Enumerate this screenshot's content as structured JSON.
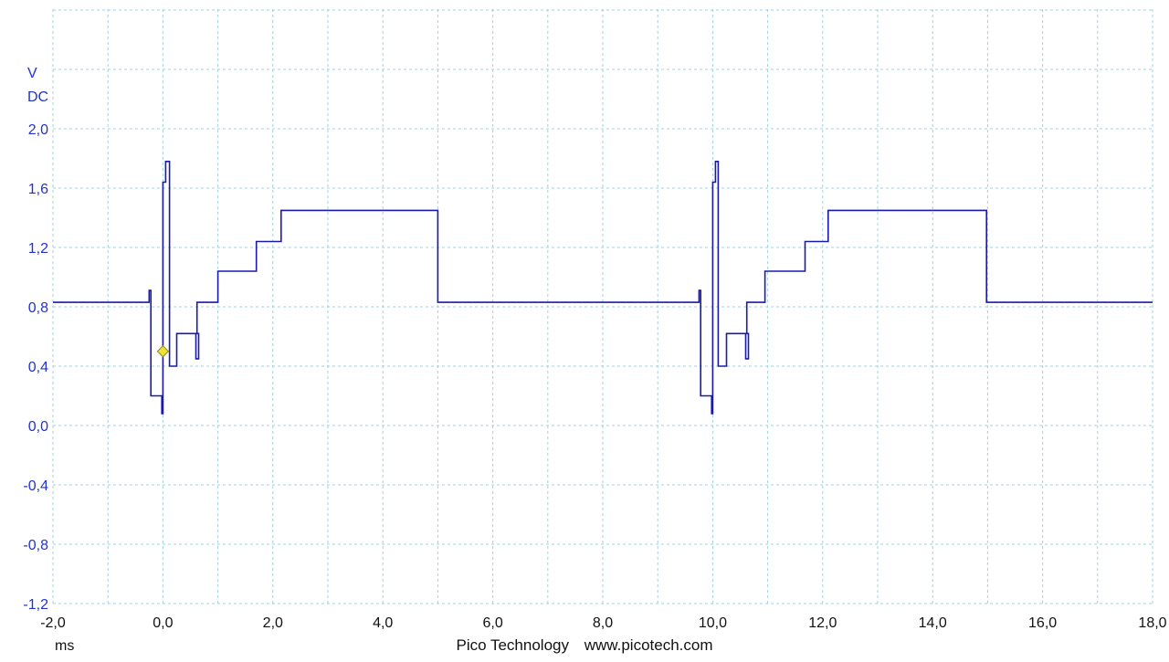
{
  "chart_data": {
    "type": "line",
    "y_unit": "V",
    "y_coupling": "DC",
    "x_unit": "ms",
    "xlim": [
      -2.0,
      18.0
    ],
    "ylim": [
      -1.2,
      2.0
    ],
    "x_ticks": [
      "-2,0",
      "0,0",
      "2,0",
      "4,0",
      "6,0",
      "8,0",
      "10,0",
      "12,0",
      "14,0",
      "16,0",
      "18,0"
    ],
    "y_ticks": [
      "2,0",
      "1,6",
      "1,2",
      "0,8",
      "0,4",
      "0,0",
      "-0,4",
      "-0,8",
      "-1,2"
    ],
    "x_tick_values": [
      -2,
      0,
      2,
      4,
      6,
      8,
      10,
      12,
      14,
      16,
      18
    ],
    "y_tick_values": [
      2.0,
      1.6,
      1.2,
      0.8,
      0.4,
      0.0,
      -0.4,
      -0.8,
      -1.2
    ],
    "grid": true,
    "trace_color": "#1a1aaa",
    "axis_color": "#2233cc",
    "trigger_color": "#f0e030",
    "trigger": {
      "x": 0.0,
      "y": 0.5
    },
    "series": [
      {
        "x": [
          -2.0,
          -0.25,
          -0.25,
          -0.22,
          -0.22,
          -0.2,
          -0.2,
          -0.02,
          -0.02,
          0.0,
          0.0,
          0.05,
          0.05,
          0.12,
          0.12,
          0.25,
          0.25,
          0.6,
          0.6,
          0.65,
          0.65,
          0.62,
          0.62,
          1.0,
          1.0,
          1.7,
          1.7,
          2.15,
          2.15,
          5.0,
          5.0,
          9.75,
          9.75,
          9.78,
          9.78,
          9.8,
          9.8,
          9.98,
          9.98,
          10.0,
          10.0,
          10.05,
          10.05,
          10.1,
          10.1,
          10.25,
          10.25,
          10.6,
          10.6,
          10.65,
          10.65,
          10.62,
          10.62,
          10.95,
          10.95,
          11.68,
          11.68,
          12.1,
          12.1,
          14.98,
          14.98,
          18.0
        ],
        "y": [
          0.83,
          0.83,
          0.91,
          0.91,
          0.2,
          0.2,
          0.2,
          0.2,
          0.08,
          0.08,
          1.64,
          1.64,
          1.78,
          1.78,
          0.4,
          0.4,
          0.62,
          0.62,
          0.45,
          0.45,
          0.62,
          0.62,
          0.83,
          0.83,
          1.04,
          1.04,
          1.24,
          1.24,
          1.45,
          1.45,
          0.83,
          0.83,
          0.91,
          0.91,
          0.2,
          0.2,
          0.2,
          0.2,
          0.08,
          0.08,
          1.64,
          1.64,
          1.78,
          1.78,
          0.4,
          0.4,
          0.62,
          0.62,
          0.45,
          0.45,
          0.62,
          0.62,
          0.83,
          0.83,
          1.04,
          1.04,
          1.24,
          1.24,
          1.45,
          1.45,
          0.83,
          0.83
        ]
      }
    ]
  },
  "footer": {
    "brand": "Pico Technology",
    "website": "www.picotech.com"
  }
}
